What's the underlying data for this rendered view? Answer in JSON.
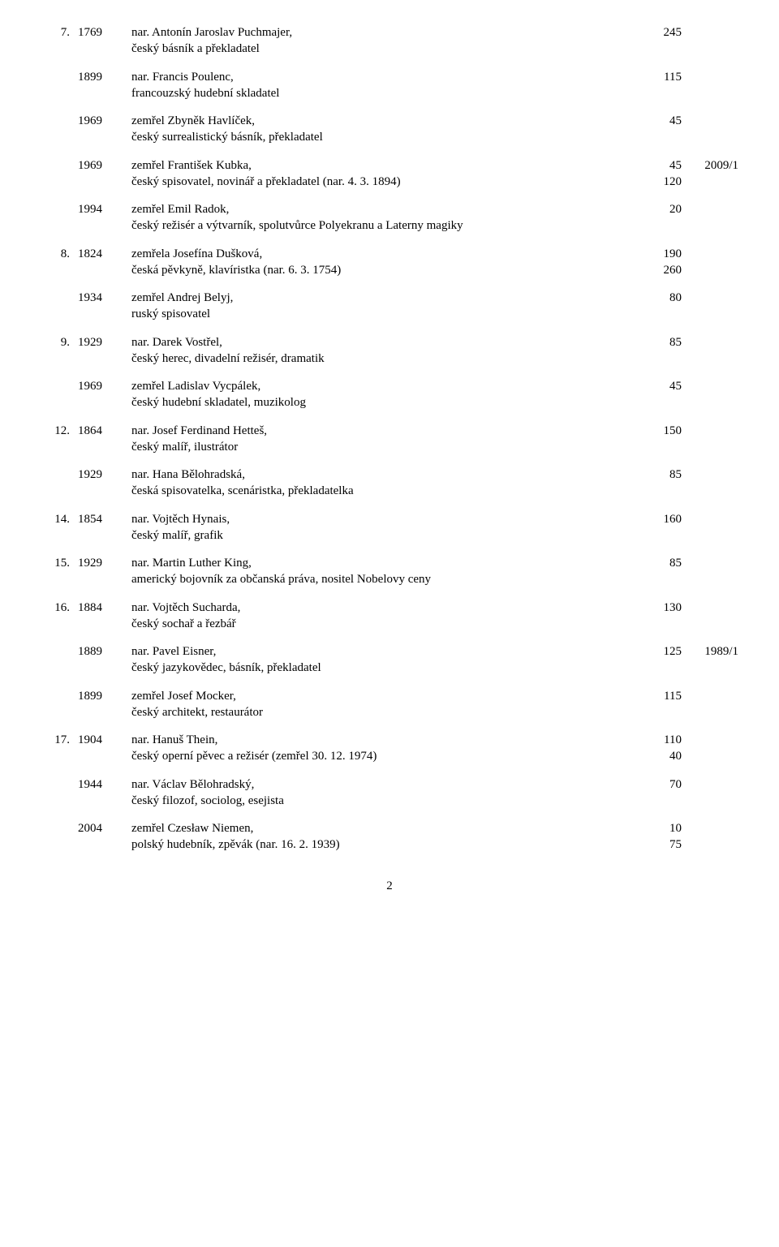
{
  "page_number": "2",
  "entries": [
    {
      "day": "7.",
      "year": "1769",
      "line1": "nar. Antonín Jaroslav Puchmajer,",
      "line2": "český básník a překladatel",
      "val1a": "245",
      "val1b": "",
      "val2a": "",
      "val2b": ""
    },
    {
      "day": "",
      "year": "1899",
      "line1": "nar. Francis Poulenc,",
      "line2": "francouzský hudební skladatel",
      "val1a": "115",
      "val1b": "",
      "val2a": "",
      "val2b": ""
    },
    {
      "day": "",
      "year": "1969",
      "line1": "zemřel Zbyněk Havlíček,",
      "line2": "český surrealistický básník, překladatel",
      "val1a": "45",
      "val1b": "",
      "val2a": "",
      "val2b": ""
    },
    {
      "day": "",
      "year": "1969",
      "line1": "zemřel František Kubka,",
      "line2": "český spisovatel, novinář a překladatel (nar. 4. 3. 1894)",
      "val1a": "45",
      "val1b": "120",
      "val2a": "2009/1",
      "val2b": ""
    },
    {
      "day": "",
      "year": "1994",
      "line1": "zemřel Emil Radok,",
      "line2": "český režisér a výtvarník, spolutvůrce Polyekranu a Laterny magiky",
      "val1a": "20",
      "val1b": "",
      "val2a": "",
      "val2b": ""
    },
    {
      "day": "8.",
      "year": "1824",
      "line1": "zemřela Josefína Dušková,",
      "line2": "česká pěvkyně, klavíristka (nar. 6. 3. 1754)",
      "val1a": "190",
      "val1b": "260",
      "val2a": "",
      "val2b": ""
    },
    {
      "day": "",
      "year": "1934",
      "line1": "zemřel Andrej Belyj,",
      "line2": "ruský spisovatel",
      "val1a": "80",
      "val1b": "",
      "val2a": "",
      "val2b": ""
    },
    {
      "day": "9.",
      "year": "1929",
      "line1": "nar. Darek Vostřel,",
      "line2": "český herec, divadelní režisér, dramatik",
      "val1a": "85",
      "val1b": "",
      "val2a": "",
      "val2b": ""
    },
    {
      "day": "",
      "year": "1969",
      "line1": "zemřel Ladislav Vycpálek,",
      "line2": "český hudební skladatel, muzikolog",
      "val1a": "45",
      "val1b": "",
      "val2a": "",
      "val2b": ""
    },
    {
      "day": "12.",
      "year": "1864",
      "line1": "nar. Josef Ferdinand Hetteš,",
      "line2": "český malíř, ilustrátor",
      "val1a": "150",
      "val1b": "",
      "val2a": "",
      "val2b": ""
    },
    {
      "day": "",
      "year": "1929",
      "line1": "nar. Hana Bělohradská,",
      "line2": "česká spisovatelka, scenáristka, překladatelka",
      "val1a": "85",
      "val1b": "",
      "val2a": "",
      "val2b": ""
    },
    {
      "day": "14.",
      "year": "1854",
      "line1": "nar. Vojtěch Hynais,",
      "line2": "český malíř, grafik",
      "val1a": "160",
      "val1b": "",
      "val2a": "",
      "val2b": ""
    },
    {
      "day": "15.",
      "year": "1929",
      "line1": "nar. Martin Luther King,",
      "line2": "americký bojovník za občanská práva, nositel Nobelovy ceny",
      "val1a": "85",
      "val1b": "",
      "val2a": "",
      "val2b": ""
    },
    {
      "day": "16.",
      "year": "1884",
      "line1": "nar. Vojtěch Sucharda,",
      "line2": "český sochař a řezbář",
      "val1a": "130",
      "val1b": "",
      "val2a": "",
      "val2b": ""
    },
    {
      "day": "",
      "year": "1889",
      "line1": "nar. Pavel Eisner,",
      "line2": "český jazykovědec, básník, překladatel",
      "val1a": "125",
      "val1b": "",
      "val2a": "1989/1",
      "val2b": ""
    },
    {
      "day": "",
      "year": "1899",
      "line1": "zemřel Josef Mocker,",
      "line2": "český architekt, restaurátor",
      "val1a": "115",
      "val1b": "",
      "val2a": "",
      "val2b": ""
    },
    {
      "day": "17.",
      "year": "1904",
      "line1": "nar. Hanuš Thein,",
      "line2": "český operní pěvec a režisér (zemřel 30. 12. 1974)",
      "val1a": "110",
      "val1b": "40",
      "val2a": "",
      "val2b": ""
    },
    {
      "day": "",
      "year": "1944",
      "line1": "nar. Václav Bělohradský,",
      "line2": "český filozof, sociolog, esejista",
      "val1a": "70",
      "val1b": "",
      "val2a": "",
      "val2b": ""
    },
    {
      "day": "",
      "year": "2004",
      "line1": "zemřel Czesław Niemen,",
      "line2": "polský hudebník, zpěvák (nar. 16. 2. 1939)",
      "val1a": "10",
      "val1b": "75",
      "val2a": "",
      "val2b": ""
    }
  ]
}
